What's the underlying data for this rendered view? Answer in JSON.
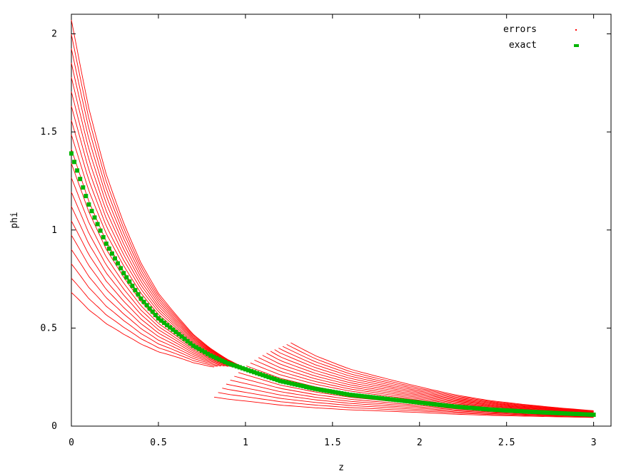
{
  "chart_data": {
    "type": "line",
    "xlabel": "z",
    "ylabel": "phi",
    "xlim": [
      0,
      3.1
    ],
    "ylim": [
      0,
      2.1
    ],
    "x_ticks": [
      0,
      0.5,
      1,
      1.5,
      2,
      2.5,
      3
    ],
    "x_tick_labels": [
      "0",
      "0.5",
      "1",
      "1.5",
      "2",
      "2.5",
      "3"
    ],
    "y_ticks": [
      0,
      0.5,
      1,
      1.5,
      2
    ],
    "y_tick_labels": [
      "0",
      "0.5",
      "1",
      "1.5",
      "2"
    ],
    "legend_position": "top-right",
    "colors": {
      "errors": "#ff0000",
      "exact": "#00b400"
    },
    "series": [
      {
        "name": "errors",
        "style": "points",
        "description": "families of perturbed curves around the exact solution",
        "x_sample": [
          0,
          0.25,
          0.5,
          0.75,
          1.0,
          1.25,
          1.5,
          2.0,
          2.5,
          3.0
        ],
        "upper_envelope_y": [
          2.07,
          1.25,
          0.78,
          0.52,
          0.36,
          0.5,
          0.39,
          0.27,
          0.19,
          0.14
        ],
        "lower_envelope_y": [
          0.68,
          0.5,
          0.37,
          0.28,
          0.31,
          0.23,
          0.06,
          0.04,
          0.03,
          0.02
        ]
      },
      {
        "name": "exact",
        "style": "points",
        "x": [
          0,
          0.1,
          0.2,
          0.3,
          0.4,
          0.5,
          0.6,
          0.7,
          0.8,
          0.9,
          1.0,
          1.2,
          1.4,
          1.6,
          1.8,
          2.0,
          2.2,
          2.4,
          2.6,
          2.8,
          3.0
        ],
        "y": [
          1.39,
          1.13,
          0.93,
          0.78,
          0.65,
          0.55,
          0.48,
          0.41,
          0.36,
          0.32,
          0.29,
          0.23,
          0.19,
          0.16,
          0.14,
          0.12,
          0.1,
          0.085,
          0.075,
          0.066,
          0.058
        ]
      }
    ]
  }
}
